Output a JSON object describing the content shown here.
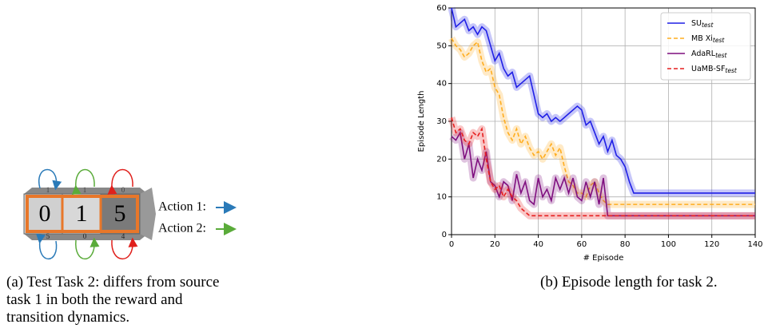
{
  "diagram": {
    "face_digits": [
      "0",
      "1",
      "5"
    ],
    "top_digits": [
      "1",
      "1",
      "0"
    ],
    "bottom_digits": [
      "5",
      "0",
      "4"
    ],
    "actions": [
      "Action 1:",
      "Action 2:"
    ]
  },
  "captions": [
    "(a) Test Task 2: differs from source task 1 in both the reward and transition dynamics.",
    "(b) Episode length for task 2."
  ],
  "chart_data": {
    "type": "line",
    "xlabel": "# Episode",
    "ylabel": "Episode Length",
    "x": [
      0,
      2,
      4,
      6,
      8,
      10,
      12,
      14,
      16,
      18,
      20,
      22,
      24,
      26,
      28,
      30,
      32,
      34,
      36,
      38,
      40,
      42,
      44,
      46,
      48,
      50,
      52,
      54,
      56,
      58,
      60,
      62,
      64,
      66,
      68,
      70,
      72,
      74,
      76,
      78,
      80,
      82,
      84,
      86,
      140
    ],
    "series": [
      {
        "name": "SU",
        "subscript": "test",
        "color": "#1f1fe6",
        "dashed": false,
        "values": [
          60,
          55,
          56,
          57,
          54,
          55,
          53,
          55,
          54,
          50,
          46,
          48,
          44,
          42,
          43,
          39,
          40,
          41,
          42,
          37,
          32,
          31,
          32,
          30,
          31,
          30,
          31,
          32,
          33,
          34,
          33,
          29,
          30,
          27,
          24,
          26,
          22,
          25,
          21,
          20,
          18,
          14,
          11,
          11,
          11
        ]
      },
      {
        "name": "MB Xi",
        "subscript": "test",
        "color": "#ffad1f",
        "dashed": true,
        "values": [
          52,
          50,
          49,
          47,
          48,
          50,
          51,
          46,
          43,
          44,
          39,
          37,
          31,
          27,
          25,
          28,
          24,
          26,
          23,
          21,
          22,
          20,
          22,
          24,
          21,
          23,
          18,
          14,
          13,
          11,
          11,
          10,
          13,
          14,
          11,
          9,
          8,
          8,
          8,
          8,
          8,
          8,
          8,
          8,
          8
        ]
      },
      {
        "name": "AdaRL",
        "subscript": "test",
        "color": "#7f0f7f",
        "dashed": false,
        "values": [
          26,
          25,
          27,
          20,
          24,
          15,
          20,
          17,
          22,
          14,
          13,
          10,
          14,
          13,
          9,
          16,
          11,
          14,
          9,
          8,
          15,
          10,
          12,
          9,
          15,
          12,
          15,
          11,
          15,
          10,
          9,
          14,
          10,
          14,
          8,
          15,
          5,
          5,
          5,
          5,
          5,
          5,
          5,
          5,
          5
        ]
      },
      {
        "name": "UaMB-SF",
        "subscript": "test",
        "color": "#e61f1f",
        "dashed": true,
        "values": [
          31,
          27,
          28,
          25,
          24,
          27,
          26,
          28,
          20,
          14,
          12,
          13,
          10,
          12,
          10,
          9,
          7,
          6,
          5,
          5,
          5,
          5,
          5,
          5,
          5,
          5,
          5,
          5,
          5,
          5,
          5,
          5,
          5,
          5,
          5,
          5,
          5,
          5,
          5,
          5,
          5,
          5,
          5,
          5,
          5
        ]
      }
    ],
    "xlim": [
      0,
      140
    ],
    "ylim": [
      0,
      60
    ],
    "xticks": [
      0,
      20,
      40,
      60,
      80,
      100,
      120,
      140
    ],
    "yticks": [
      0,
      10,
      20,
      30,
      40,
      50,
      60
    ],
    "grid": true,
    "legend": "upper right"
  }
}
